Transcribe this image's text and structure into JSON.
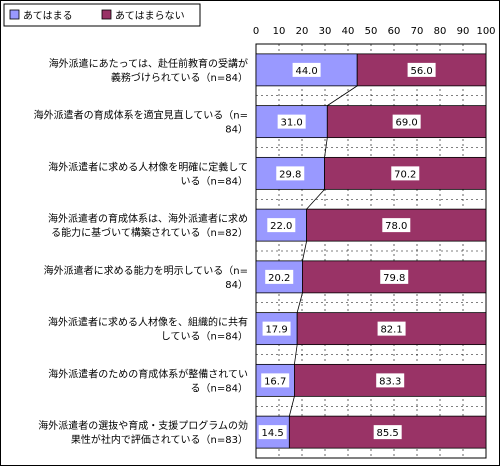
{
  "chart_data": {
    "type": "bar",
    "orientation": "horizontal",
    "stacked": true,
    "percent": true,
    "legend_position": "top-left",
    "xlim": [
      0,
      100
    ],
    "xticks": [
      "0",
      "10",
      "20",
      "30",
      "40",
      "50",
      "60",
      "70",
      "80",
      "90",
      "100"
    ],
    "grid": "vertical dashed",
    "series_lines": true,
    "categories": [
      [
        "海外派遣にあたっては、赴任前教育の受講が",
        "義務づけられている（n=84）"
      ],
      [
        "海外派遣者の育成体系を適宜見直している（n=",
        "84）"
      ],
      [
        "海外派遣者に求める人材像を明確に定義して",
        "いる（n=84）"
      ],
      [
        "海外派遣者の育成体系は、海外派遣者に求め",
        "る能力に基づいて構築されている（n=82）"
      ],
      [
        "海外派遣者に求める能力を明示している（n=",
        "84）"
      ],
      [
        "海外派遣者に求める人材像を、組織的に共有",
        "している（n=84）"
      ],
      [
        "海外派遣者のための育成体系が整備されてい",
        "る（n=84）"
      ],
      [
        "海外派遣者の選抜や育成・支援プログラムの効",
        "果性が社内で評価されている（n=83）"
      ]
    ],
    "series": [
      {
        "name": "あてはまる",
        "color": "#9999ff",
        "values": [
          44.0,
          31.0,
          29.8,
          22.0,
          20.2,
          17.9,
          16.7,
          14.5
        ],
        "labels": [
          "44.0",
          "31.0",
          "29.8",
          "22.0",
          "20.2",
          "17.9",
          "16.7",
          "14.5"
        ]
      },
      {
        "name": "あてはまらない",
        "color": "#993366",
        "values": [
          56.0,
          69.0,
          70.2,
          78.0,
          79.8,
          82.1,
          83.3,
          85.5
        ],
        "labels": [
          "56.0",
          "69.0",
          "70.2",
          "78.0",
          "79.8",
          "82.1",
          "83.3",
          "85.5"
        ]
      }
    ]
  }
}
